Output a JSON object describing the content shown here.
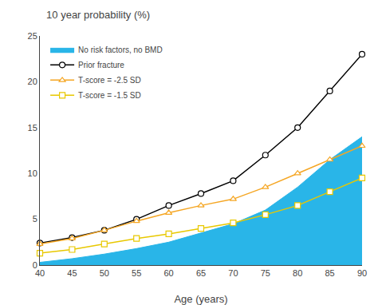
{
  "chart_data": {
    "type": "line",
    "title": "10 year probability (%)",
    "xlabel": "Age (years)",
    "x": [
      40,
      45,
      50,
      55,
      60,
      65,
      70,
      75,
      80,
      85,
      90
    ],
    "series": [
      {
        "name": "No risk factors, no BMD",
        "type": "area",
        "color": "#29b5e8",
        "values": [
          0.3,
          0.7,
          1.2,
          1.8,
          2.5,
          3.5,
          4.5,
          6.0,
          8.5,
          11.5,
          14.0
        ]
      },
      {
        "name": "Prior fracture",
        "type": "line",
        "color": "#000000",
        "marker": "circle",
        "line_style": "solid",
        "values": [
          2.4,
          3.0,
          3.8,
          5.0,
          6.5,
          7.8,
          9.2,
          12.0,
          15.0,
          19.0,
          23.0
        ]
      },
      {
        "name": "T-score = -2.5 SD",
        "type": "line",
        "color": "#f5a623",
        "marker": "triangle-up",
        "line_style": "solid",
        "values": [
          2.3,
          2.9,
          3.8,
          4.8,
          5.7,
          6.5,
          7.2,
          8.5,
          10.0,
          11.5,
          13.0
        ]
      },
      {
        "name": "T-score = -1.5 SD",
        "type": "line",
        "color": "#e8c800",
        "marker": "square",
        "line_style": "solid",
        "values": [
          1.3,
          1.7,
          2.3,
          2.9,
          3.4,
          4.0,
          4.6,
          5.5,
          6.5,
          8.0,
          9.5
        ]
      }
    ],
    "xlim": [
      40,
      90
    ],
    "xticks": [
      40,
      45,
      50,
      55,
      60,
      65,
      70,
      75,
      80,
      85,
      90
    ],
    "ylim": [
      0,
      25
    ],
    "yticks": [
      0,
      5,
      10,
      15,
      20,
      25
    ],
    "grid": false,
    "legend": "upper left"
  }
}
